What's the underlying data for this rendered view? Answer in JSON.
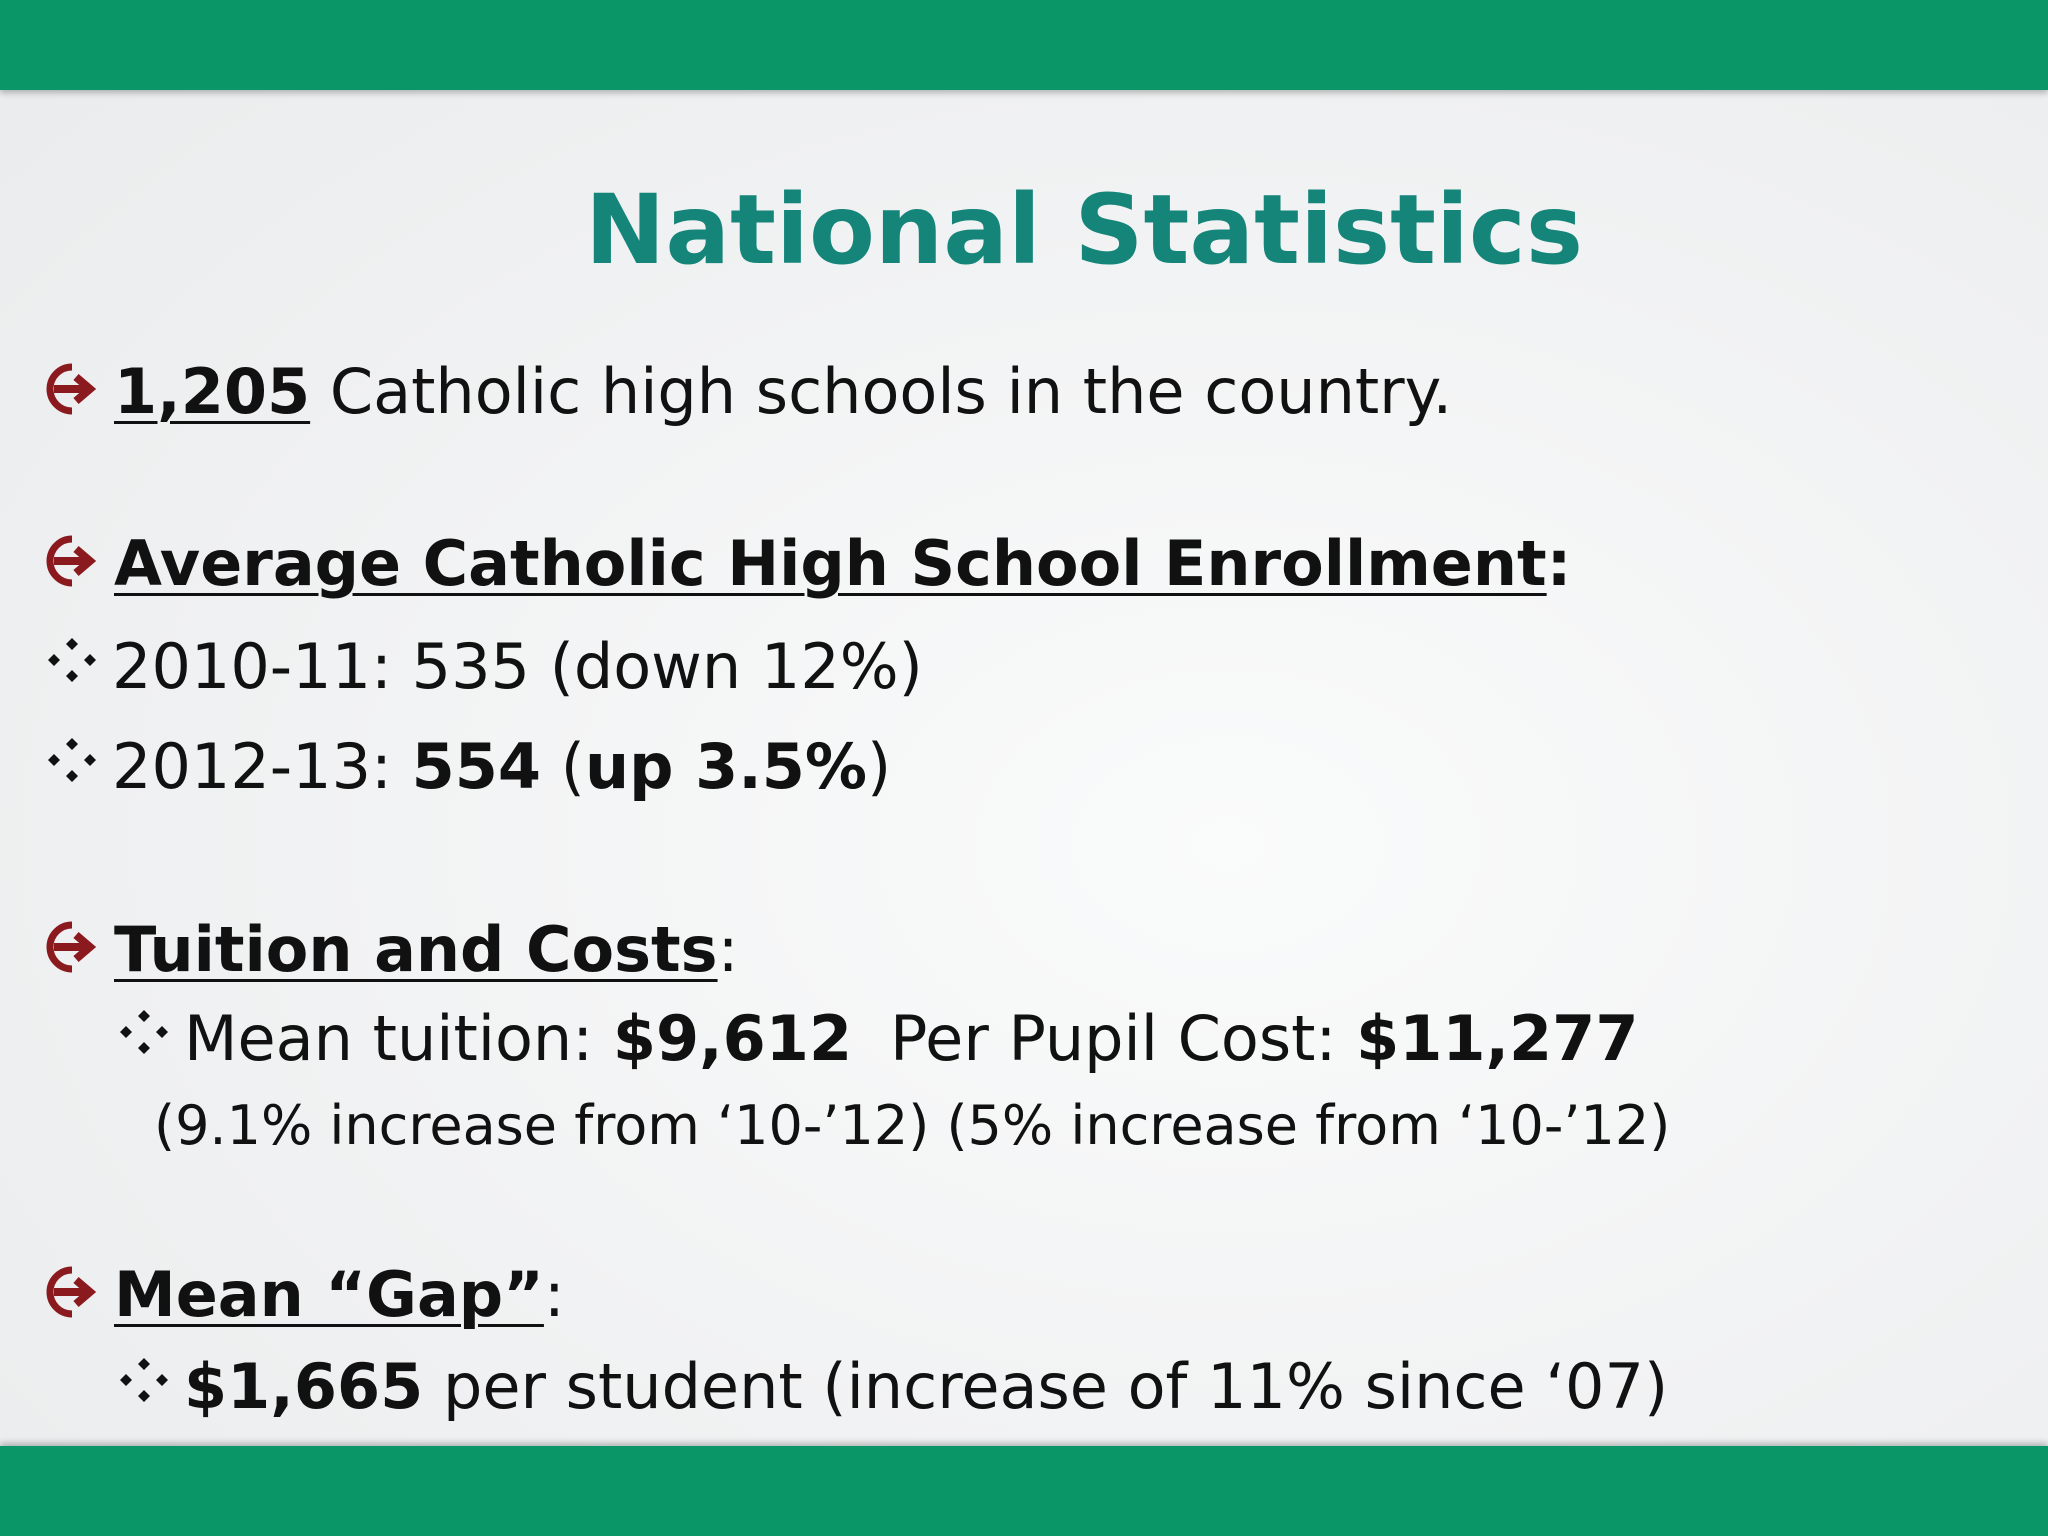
{
  "title": "National Statistics",
  "colors": {
    "band": "#0b9668",
    "title": "#15857a",
    "bullet_arrow": "#8b1a1f",
    "text": "#111111"
  },
  "icons": {
    "section_bullet": "circled-arrow-icon",
    "sub_bullet": "four-diamond-icon"
  },
  "bullets": {
    "schools": {
      "number": "1,205",
      "text": " Catholic high schools in the country."
    },
    "enrollment": {
      "heading": "Average Catholic High School Enrollment",
      "colon": ":",
      "items": [
        {
          "label": "2010-11: 535 (down 12%)"
        },
        {
          "label_prefix": "2012-13: ",
          "value": "554",
          "paren_open": " (",
          "change": "up 3.5%",
          "paren_close": ")"
        }
      ]
    },
    "tuition": {
      "heading": "Tuition and Costs",
      "colon": ":",
      "mean_label": "Mean tuition: ",
      "mean_value": "$9,612",
      "cost_label": "Per Pupil Cost: ",
      "cost_value": "$11,277",
      "note": "(9.1% increase from ‘10-’12) (5% increase from ‘10-’12)"
    },
    "gap": {
      "heading": "Mean “Gap”",
      "colon": ":",
      "value": "$1,665",
      "text": " per student (increase of 11% since ‘07)"
    }
  }
}
